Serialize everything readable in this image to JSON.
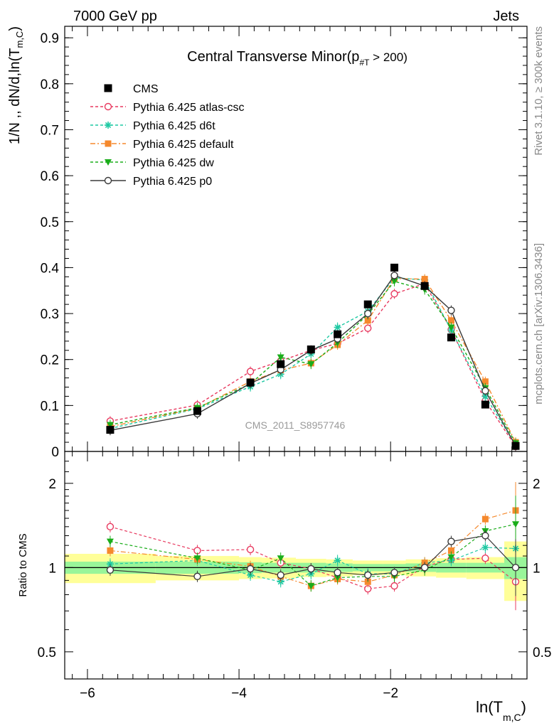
{
  "header": {
    "left": "7000 GeV pp",
    "right": "Jets"
  },
  "side": {
    "rivet": "Rivet 3.1.10, ≥ 300k events",
    "mcplots": "mcplots.cern.ch [arXiv:1306.3436]"
  },
  "chart_data": {
    "type": "line",
    "title": "Central Transverse Minor(p",
    "title_sub": "#T",
    "title_tail": " > 200)",
    "watermark": "CMS_2011_S8957746",
    "ylabel_main": "1/N ,, dN/d,ln(T",
    "ylabel_main_sub": "m,C",
    "ylabel_main_tail": ")",
    "ylabel_ratio": "Ratio to CMS",
    "xlabel": "ln(T",
    "xlabel_sub": "m,C",
    "xlabel_tail": ")",
    "xlim": [
      -6.3,
      -0.2
    ],
    "main_ylim": [
      0,
      0.925
    ],
    "main_yticks": [
      0,
      0.1,
      0.2,
      0.3,
      0.4,
      0.5,
      0.6,
      0.7,
      0.8,
      0.9
    ],
    "main_ytick_labels": [
      "0",
      "0.1",
      "0.2",
      "0.3",
      "0.4",
      "0.5",
      "0.6",
      "0.7",
      "0.8",
      "0.9"
    ],
    "ratio_yscale": "log",
    "ratio_ylim": [
      0.4,
      2.6
    ],
    "ratio_yticks": [
      0.5,
      1,
      2
    ],
    "ratio_ytick_labels": [
      "0.5",
      "1",
      "2"
    ],
    "xticks": [
      -6,
      -4,
      -2
    ],
    "xtick_labels": [
      "−6",
      "−4",
      "−2"
    ],
    "x": [
      -5.7,
      -4.55,
      -3.85,
      -3.45,
      -3.05,
      -2.7,
      -2.3,
      -1.95,
      -1.55,
      -1.2,
      -0.75,
      -0.35
    ],
    "x_edges": [
      -6.3,
      -5.1,
      -4.0,
      -3.7,
      -3.25,
      -2.85,
      -2.5,
      -2.1,
      -1.8,
      -1.4,
      -1.0,
      -0.5,
      -0.2
    ],
    "data": {
      "name": "CMS",
      "values": [
        0.047,
        0.088,
        0.15,
        0.19,
        0.222,
        0.255,
        0.32,
        0.4,
        0.36,
        0.248,
        0.102,
        0.012
      ],
      "band_green": [
        0.05,
        0.05,
        0.045,
        0.04,
        0.04,
        0.035,
        0.03,
        0.03,
        0.035,
        0.04,
        0.04,
        0.09
      ],
      "band_yellow": [
        0.12,
        0.1,
        0.09,
        0.085,
        0.075,
        0.07,
        0.06,
        0.06,
        0.07,
        0.08,
        0.09,
        0.24
      ]
    },
    "series": [
      {
        "name": "Pythia 6.425 atlas-csc",
        "color": "#e8395f",
        "marker": "open-circle",
        "dash": "4,3",
        "values": [
          0.066,
          0.101,
          0.174,
          0.197,
          0.22,
          0.235,
          0.268,
          0.343,
          0.365,
          0.265,
          0.11,
          0.011
        ]
      },
      {
        "name": "Pythia 6.425 d6t",
        "color": "#1ec9a3",
        "marker": "star",
        "dash": "4,3",
        "values": [
          0.05,
          0.093,
          0.141,
          0.168,
          0.212,
          0.27,
          0.305,
          0.378,
          0.373,
          0.264,
          0.12,
          0.014
        ]
      },
      {
        "name": "Pythia 6.425 default",
        "color": "#f5892d",
        "marker": "square",
        "dash": "7,3,2,3",
        "values": [
          0.054,
          0.094,
          0.152,
          0.177,
          0.192,
          0.232,
          0.285,
          0.376,
          0.375,
          0.285,
          0.152,
          0.02
        ]
      },
      {
        "name": "Pythia 6.425 dw",
        "color": "#1aad1a",
        "marker": "down-triangle",
        "dash": "4,3",
        "values": [
          0.058,
          0.095,
          0.147,
          0.205,
          0.19,
          0.236,
          0.298,
          0.37,
          0.352,
          0.27,
          0.138,
          0.018
        ]
      },
      {
        "name": "Pythia 6.425 p0",
        "color": "#3a3a3a",
        "marker": "open-circle",
        "dash": "",
        "values": [
          0.046,
          0.082,
          0.148,
          0.178,
          0.22,
          0.245,
          0.3,
          0.383,
          0.36,
          0.307,
          0.132,
          0.012
        ]
      }
    ],
    "ratio_series": [
      {
        "name": "Pythia 6.425 atlas-csc",
        "values": [
          1.4,
          1.15,
          1.16,
          1.04,
          0.99,
          0.92,
          0.84,
          0.86,
          1.01,
          1.07,
          1.08,
          0.89
        ]
      },
      {
        "name": "Pythia 6.425 d6t",
        "values": [
          1.03,
          1.06,
          0.94,
          0.89,
          0.95,
          1.06,
          0.95,
          0.95,
          1.04,
          1.06,
          1.18,
          1.17
        ]
      },
      {
        "name": "Pythia 6.425 default",
        "values": [
          1.15,
          1.07,
          1.01,
          0.93,
          0.86,
          0.91,
          0.89,
          0.94,
          1.04,
          1.15,
          1.49,
          1.6
        ]
      },
      {
        "name": "Pythia 6.425 dw",
        "values": [
          1.24,
          1.08,
          0.98,
          1.08,
          0.86,
          0.92,
          0.93,
          0.93,
          0.98,
          1.09,
          1.35,
          1.43
        ]
      },
      {
        "name": "Pythia 6.425 p0",
        "values": [
          0.98,
          0.93,
          0.99,
          0.94,
          0.99,
          0.96,
          0.94,
          0.96,
          1.0,
          1.24,
          1.3,
          1.0
        ]
      }
    ]
  }
}
